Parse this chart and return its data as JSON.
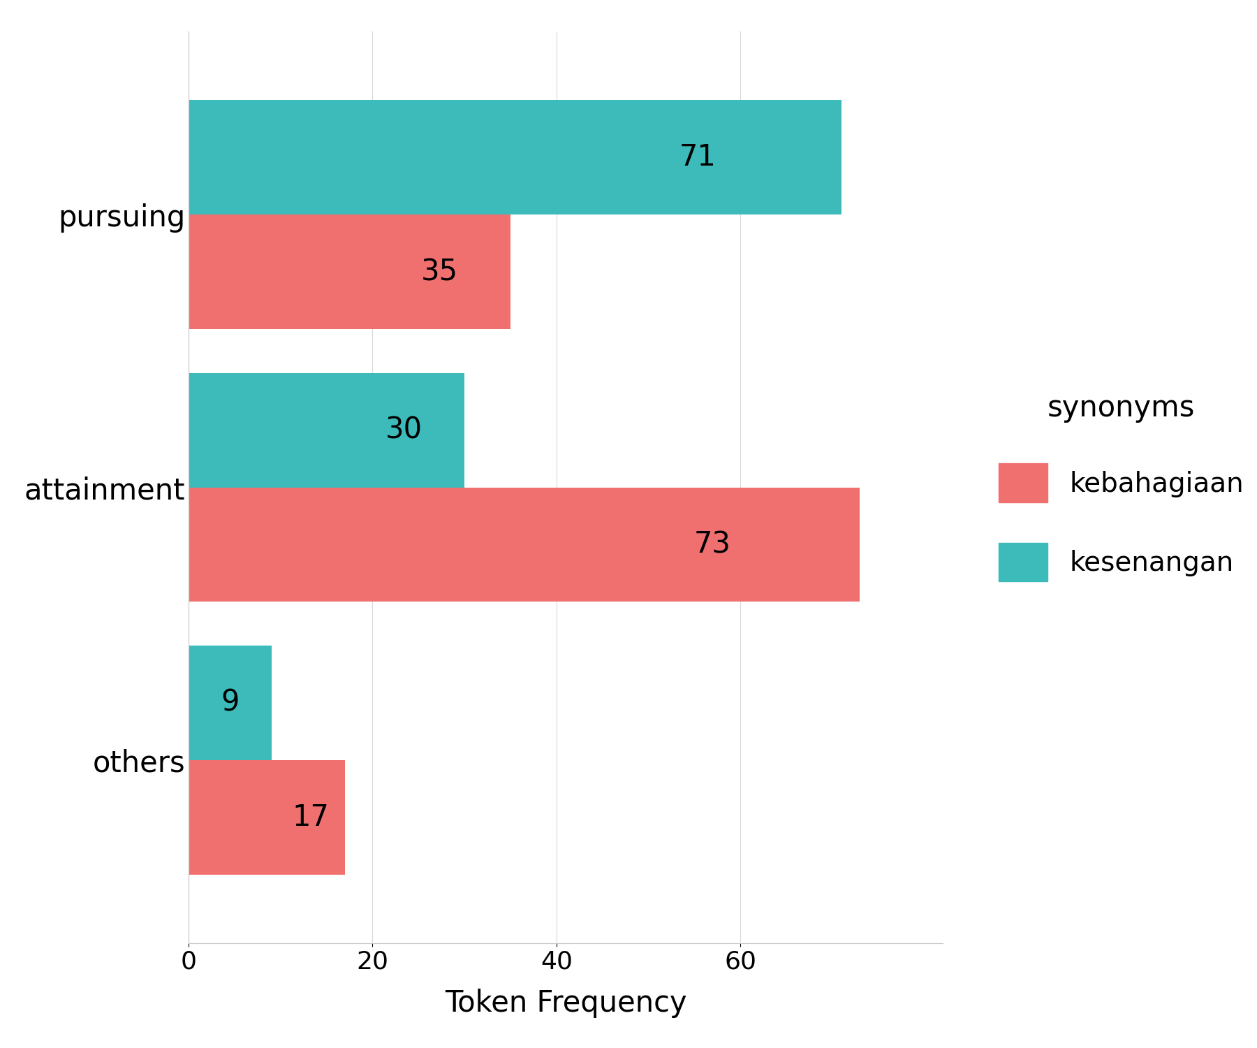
{
  "categories": [
    "others",
    "attainment",
    "pursuing"
  ],
  "kebahagiaan": [
    17,
    73,
    35
  ],
  "kesenangan": [
    9,
    30,
    71
  ],
  "color_kebahagiaan": "#F07070",
  "color_kesenangan": "#3DBBBB",
  "xlabel": "Token Frequency",
  "legend_title": "synonyms",
  "legend_labels": [
    "kebahagiaan",
    "kesenangan"
  ],
  "bar_height": 0.42,
  "background_color": "#ffffff",
  "panel_background": "#ffffff",
  "grid_color": "#d8d8d8",
  "xlim": [
    0,
    82
  ],
  "xticks": [
    0,
    20,
    40,
    60
  ],
  "label_fontsize": 30,
  "tick_fontsize": 26,
  "annotation_fontsize": 30,
  "legend_fontsize": 28,
  "legend_title_fontsize": 30
}
